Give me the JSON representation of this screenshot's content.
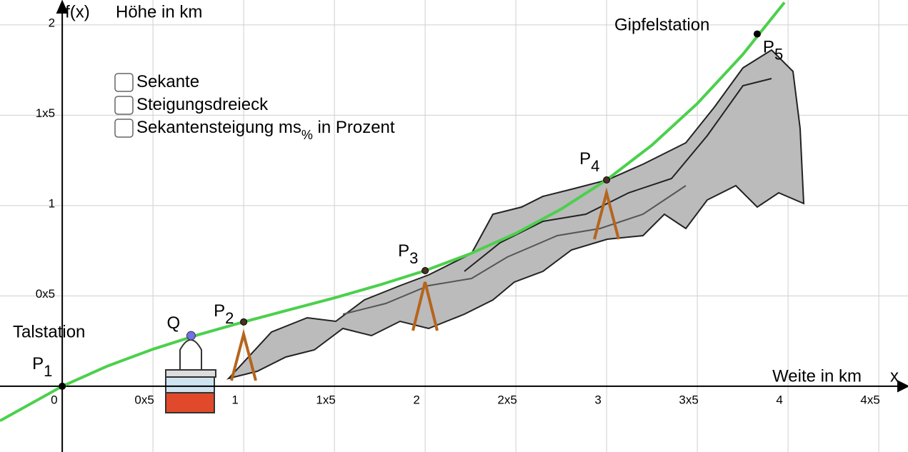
{
  "chart_data": {
    "type": "line",
    "y_axis_name": "f(x)",
    "y_label": "Höhe in km",
    "x_axis_name": "x",
    "x_label": "Weite in km",
    "xlim": [
      -0.343,
      4.661
    ],
    "ylim": [
      -0.364,
      2.138
    ],
    "xticks": [
      0,
      {
        "value": 0.5,
        "label": "0x5"
      },
      1,
      {
        "value": 1.5,
        "label": "1x5"
      },
      2,
      {
        "value": 2.5,
        "label": "2x5"
      },
      3,
      {
        "value": 3.5,
        "label": "3x5"
      },
      4,
      {
        "value": 4.5,
        "label": "4x5"
      }
    ],
    "yticks": [
      {
        "value": 0.5,
        "label": "0x5"
      },
      1,
      {
        "value": 1.5,
        "label": "1x5"
      },
      2
    ],
    "grid": true,
    "series": [
      {
        "color": "#4cd04c",
        "x": [
          -0.343,
          0,
          0.25,
          0.5,
          0.75,
          1,
          1.25,
          1.5,
          1.75,
          2,
          2.25,
          2.5,
          2.75,
          3,
          3.25,
          3.5,
          3.75,
          3.98
        ],
        "values": [
          -0.191,
          0,
          0.112,
          0.205,
          0.285,
          0.356,
          0.423,
          0.489,
          0.561,
          0.64,
          0.734,
          0.846,
          0.981,
          1.142,
          1.335,
          1.565,
          1.836,
          2.124
        ]
      }
    ],
    "points": [
      {
        "label": "P",
        "sub": "1",
        "x": 0,
        "y": 0,
        "color": "#000000"
      },
      {
        "label": "P",
        "sub": "2",
        "x": 1,
        "y": 0.356,
        "color": "#4a3020"
      },
      {
        "label": "P",
        "sub": "3",
        "x": 2,
        "y": 0.64,
        "color": "#4a3020"
      },
      {
        "label": "P",
        "sub": "4",
        "x": 3,
        "y": 1.142,
        "color": "#4a3020"
      },
      {
        "label": "P",
        "sub": "5",
        "x": 3.83,
        "y": 1.95,
        "color": "#000000"
      },
      {
        "label": "Q",
        "x": 0.71,
        "y": 0.28,
        "color": "#7070e8"
      }
    ],
    "stations": [
      "Talstation",
      "Gipfelstation"
    ],
    "checkboxes": [
      {
        "text": "Sekante"
      },
      {
        "text": "Steigungsdreieck"
      },
      {
        "text": "Sekantensteigung ms",
        "sub": "%",
        "after": " in Prozent"
      }
    ]
  }
}
